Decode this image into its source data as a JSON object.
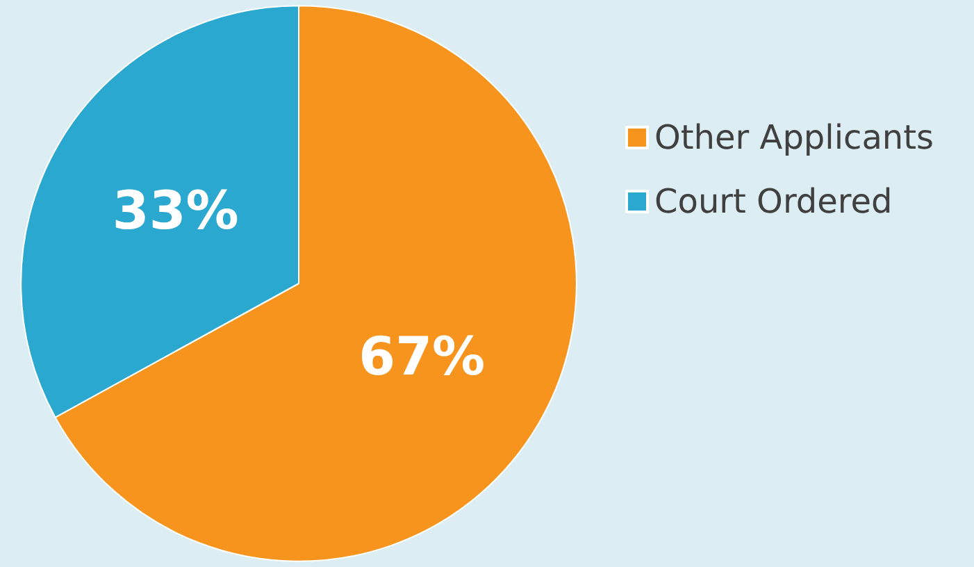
{
  "chart_data": {
    "type": "pie",
    "categories": [
      "Other Applicants",
      "Court Ordered"
    ],
    "values": [
      67,
      33
    ],
    "colors": [
      "#f7941d",
      "#2ba8d0"
    ],
    "value_labels": [
      "67%",
      "33%"
    ],
    "legend": "right"
  }
}
